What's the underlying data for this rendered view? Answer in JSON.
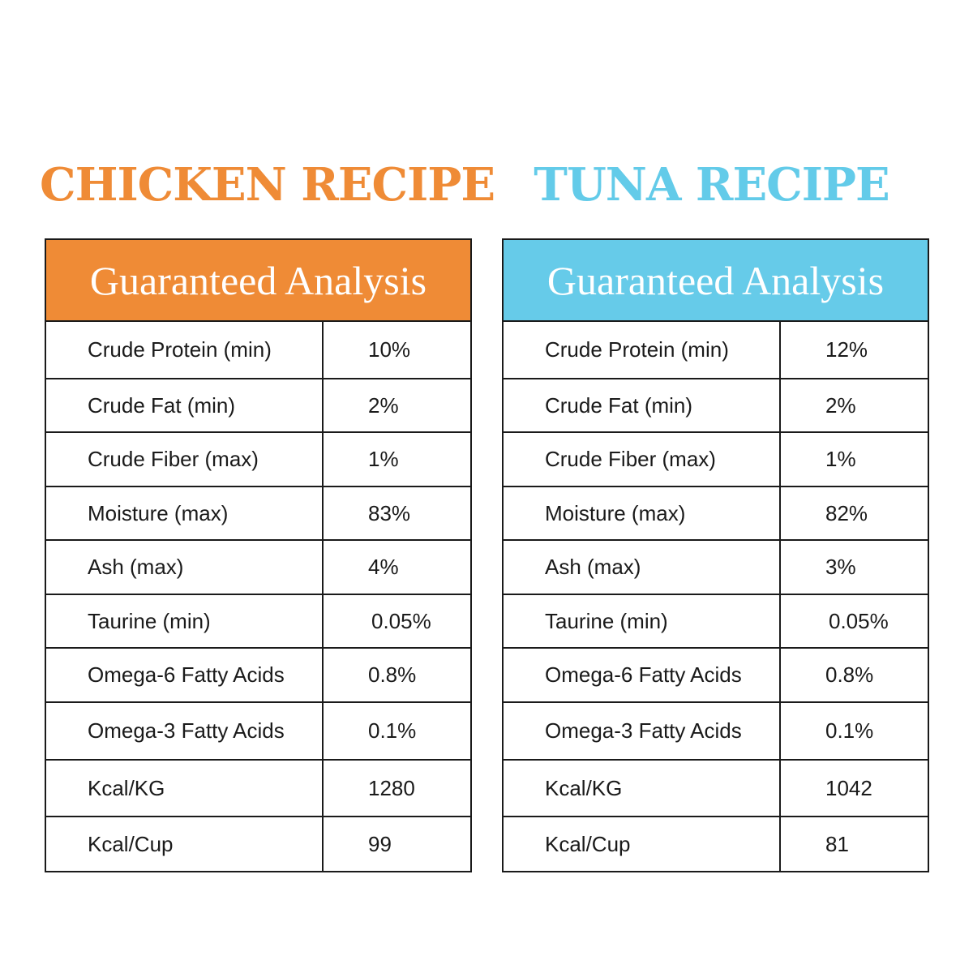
{
  "recipes": [
    {
      "title": "CHICKEN RECIPE",
      "header": "Guaranteed Analysis",
      "accent_color": "#ef8b36",
      "rows": [
        {
          "label": "Crude Protein (min)",
          "value": "10%"
        },
        {
          "label": "Crude Fat (min)",
          "value": "2%"
        },
        {
          "label": "Crude Fiber (max)",
          "value": "1%"
        },
        {
          "label": "Moisture (max)",
          "value": "83%"
        },
        {
          "label": "Ash (max)",
          "value": "4%"
        },
        {
          "label": "Taurine (min)",
          "value": "0.05%"
        },
        {
          "label": "Omega-6 Fatty Acids",
          "value": "0.8%"
        },
        {
          "label": "Omega-3 Fatty Acids",
          "value": "0.1%"
        },
        {
          "label": "Kcal/KG",
          "value": "1280"
        },
        {
          "label": "Kcal/Cup",
          "value": "99"
        }
      ]
    },
    {
      "title": "TUNA RECIPE",
      "header": "Guaranteed Analysis",
      "accent_color": "#66cbe9",
      "rows": [
        {
          "label": "Crude Protein (min)",
          "value": "12%"
        },
        {
          "label": "Crude Fat (min)",
          "value": "2%"
        },
        {
          "label": "Crude Fiber (max)",
          "value": "1%"
        },
        {
          "label": "Moisture (max)",
          "value": "82%"
        },
        {
          "label": "Ash (max)",
          "value": "3%"
        },
        {
          "label": "Taurine (min)",
          "value": "0.05%"
        },
        {
          "label": "Omega-6 Fatty Acids",
          "value": "0.8%"
        },
        {
          "label": "Omega-3 Fatty Acids",
          "value": "0.1%"
        },
        {
          "label": "Kcal/KG",
          "value": "1042"
        },
        {
          "label": "Kcal/Cup",
          "value": "81"
        }
      ]
    }
  ]
}
